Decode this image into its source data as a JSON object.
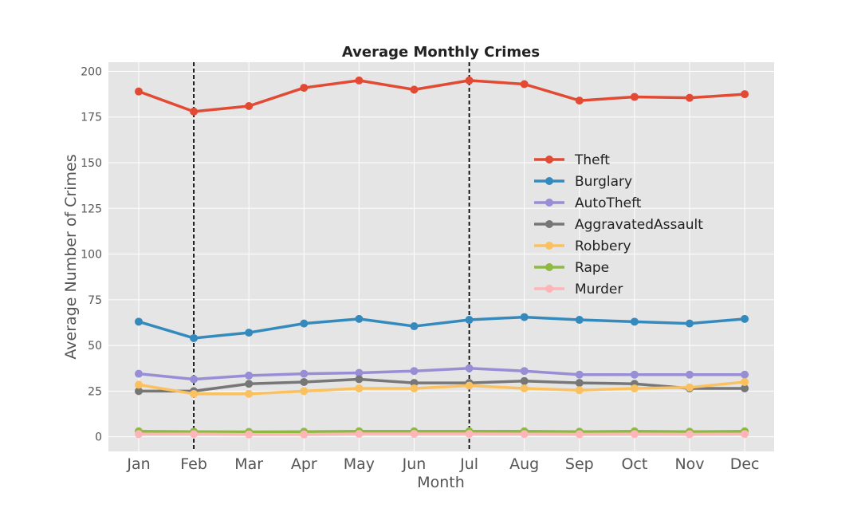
{
  "chart_data": {
    "type": "line",
    "title": "Average Monthly Crimes",
    "xlabel": "Month",
    "ylabel": "Average Number of Crimes",
    "categories": [
      "Jan",
      "Feb",
      "Mar",
      "Apr",
      "May",
      "Jun",
      "Jul",
      "Aug",
      "Sep",
      "Oct",
      "Nov",
      "Dec"
    ],
    "ylim": [
      -8,
      205
    ],
    "yticks": [
      0,
      25,
      50,
      75,
      100,
      125,
      150,
      175,
      200
    ],
    "grid": true,
    "legend_position": "right",
    "vlines": [
      "Feb",
      "Jul"
    ],
    "series": [
      {
        "name": "Theft",
        "color": "#E24A33",
        "values": [
          189,
          178,
          181,
          191,
          195,
          190,
          195,
          193,
          184,
          186,
          185.5,
          187.5
        ]
      },
      {
        "name": "Burglary",
        "color": "#348ABD",
        "values": [
          63,
          54,
          57,
          62,
          64.5,
          60.5,
          64,
          65.5,
          64,
          63,
          62,
          64.5
        ]
      },
      {
        "name": "AutoTheft",
        "color": "#988ED5",
        "values": [
          34.5,
          31.5,
          33.5,
          34.5,
          35,
          36,
          37.5,
          36,
          34,
          34,
          34,
          34
        ]
      },
      {
        "name": "AggravatedAssault",
        "color": "#777777",
        "values": [
          25,
          25,
          29,
          30,
          31.5,
          29.5,
          29.5,
          30.5,
          29.5,
          29,
          26.5,
          26.5
        ]
      },
      {
        "name": "Robbery",
        "color": "#FBC15E",
        "values": [
          28.5,
          23.5,
          23.5,
          25,
          26.5,
          26.5,
          28,
          26.5,
          25.5,
          26.5,
          27,
          30
        ]
      },
      {
        "name": "Rape",
        "color": "#8EBA42",
        "values": [
          3,
          2.8,
          2.7,
          2.8,
          3,
          3,
          3,
          3,
          2.8,
          3,
          2.8,
          3
        ]
      },
      {
        "name": "Murder",
        "color": "#FFB5B8",
        "values": [
          1.5,
          1.5,
          1.3,
          1.3,
          1.6,
          1.6,
          1.6,
          1.5,
          1.4,
          1.5,
          1.4,
          1.5
        ]
      }
    ]
  }
}
